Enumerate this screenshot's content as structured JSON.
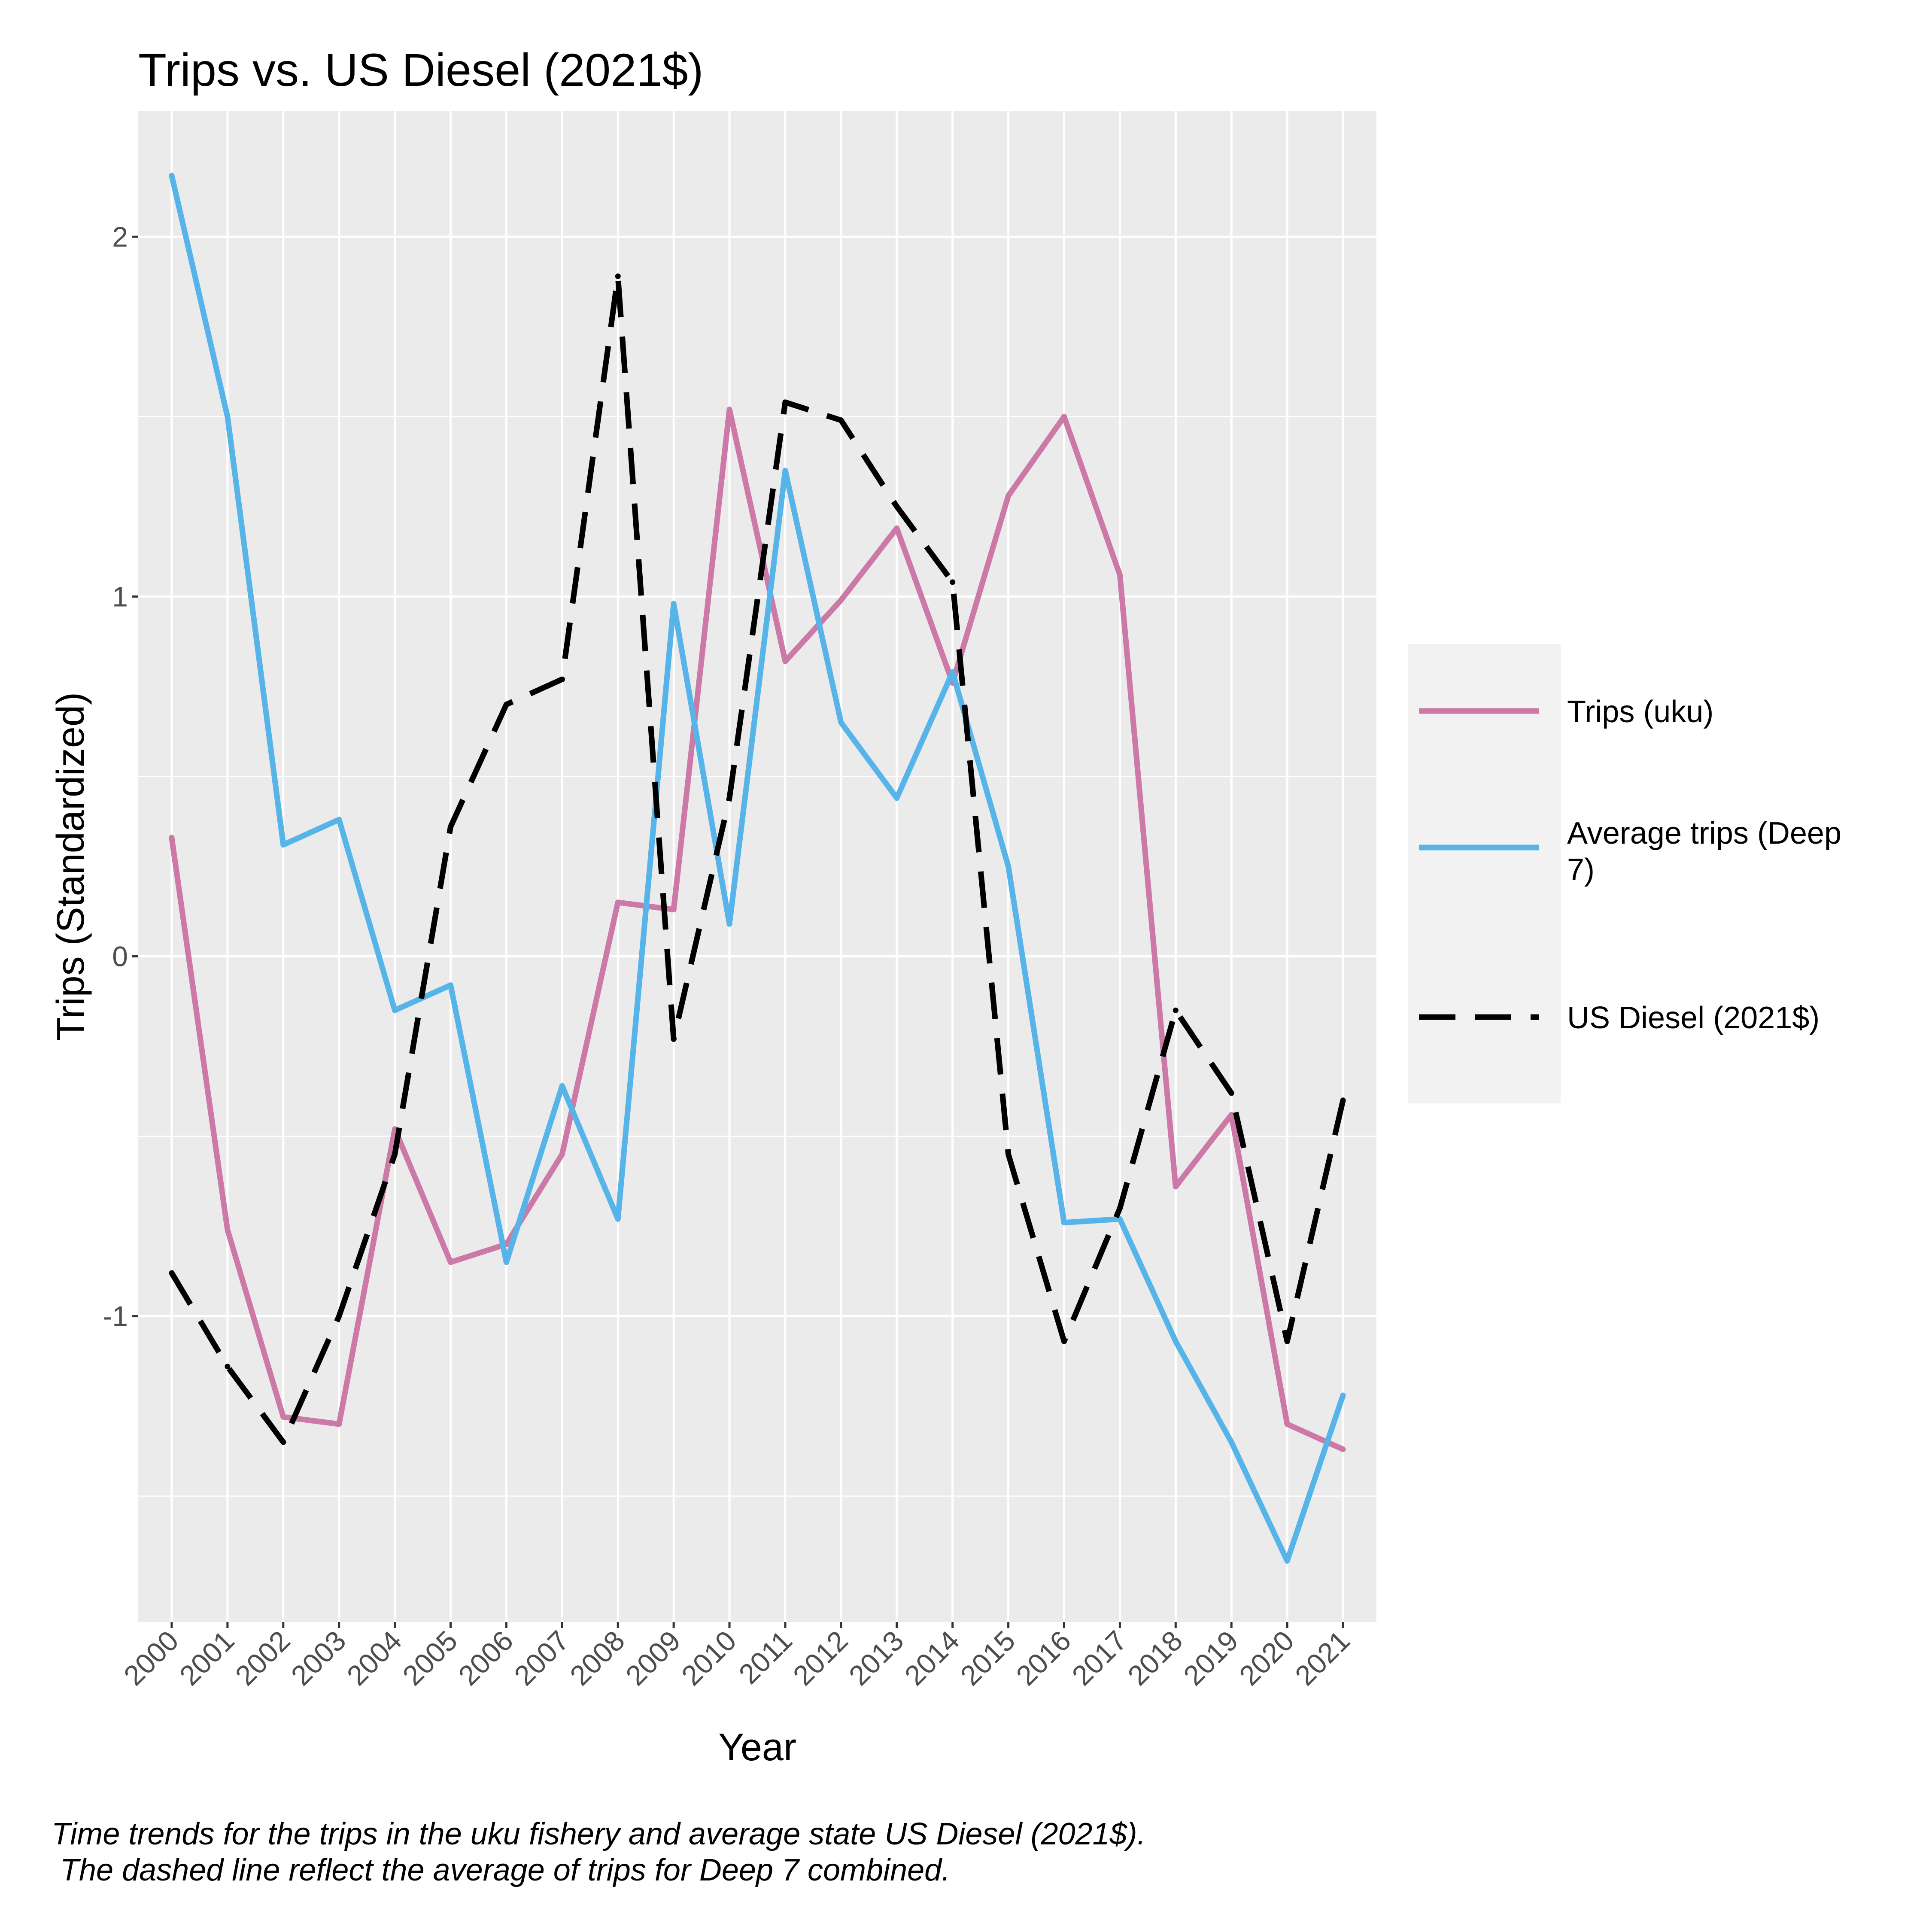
{
  "chart_data": {
    "type": "line",
    "title": "Trips vs. US Diesel (2021$)",
    "xlabel": "Year",
    "ylabel": "Trips (Standardized)",
    "x": [
      "2000",
      "2001",
      "2002",
      "2003",
      "2004",
      "2005",
      "2006",
      "2007",
      "2008",
      "2009",
      "2010",
      "2011",
      "2012",
      "2013",
      "2014",
      "2015",
      "2016",
      "2017",
      "2018",
      "2019",
      "2020",
      "2021"
    ],
    "ylim": [
      -1.85,
      2.35
    ],
    "yticks": [
      -1,
      0,
      1,
      2
    ],
    "ytick_labels": [
      "-1",
      "0",
      "1",
      "2"
    ],
    "grid": true,
    "legend_position": "right",
    "series": [
      {
        "name": "Trips (uku)",
        "color": "#CC79A7",
        "style": "solid",
        "values": [
          0.33,
          -0.76,
          -1.28,
          -1.3,
          -0.48,
          -0.85,
          -0.8,
          -0.55,
          0.15,
          0.13,
          1.52,
          0.82,
          0.99,
          1.19,
          0.76,
          1.28,
          1.5,
          1.06,
          -0.64,
          -0.44,
          -1.3,
          -1.37
        ]
      },
      {
        "name": "Average trips (Deep 7)",
        "color": "#56B4E9",
        "style": "solid",
        "values": [
          2.17,
          1.5,
          0.31,
          0.38,
          -0.15,
          -0.08,
          -0.85,
          -0.36,
          -0.73,
          0.98,
          0.09,
          1.35,
          0.65,
          0.44,
          0.79,
          0.25,
          -0.74,
          -0.73,
          -1.07,
          -1.35,
          -1.68,
          -1.22
        ]
      },
      {
        "name": "US Diesel (2021$)",
        "color": "#000000",
        "style": "dashed",
        "values": [
          -0.88,
          -1.14,
          -1.35,
          -1.0,
          -0.55,
          0.36,
          0.7,
          0.77,
          1.89,
          -0.23,
          0.44,
          1.54,
          1.49,
          1.25,
          1.04,
          -0.55,
          -1.07,
          -0.7,
          -0.15,
          -0.38,
          -1.07,
          -0.4
        ]
      }
    ]
  },
  "caption": {
    "line1": "Time trends for the trips in the uku fishery and average state US Diesel (2021$).",
    "line2": " The dashed line reflect the average of trips for Deep 7 combined."
  }
}
